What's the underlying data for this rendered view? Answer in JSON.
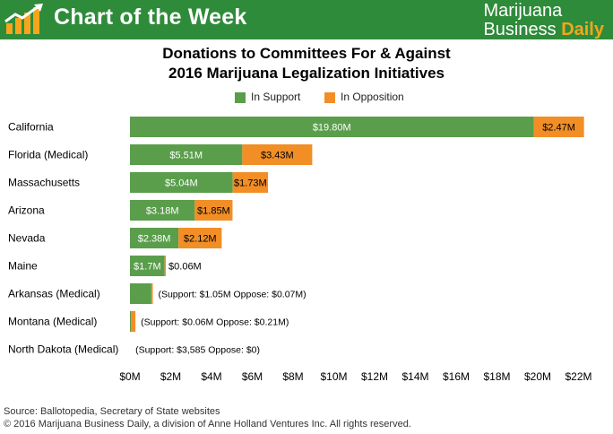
{
  "header": {
    "title": "Chart of the Week",
    "brand_line1": "Marijuana",
    "brand_line2": "Business",
    "brand_line2_accent": "Daily",
    "icon": "bar-chart-arrow-icon",
    "colors": {
      "background": "#2e8b3a",
      "accent": "#f7a51c"
    }
  },
  "chart_data": {
    "type": "bar",
    "orientation": "horizontal",
    "stacked": true,
    "title_line1": "Donations to Committees For & Against",
    "title_line2": "2016 Marijuana Legalization Initiatives",
    "categories": [
      "California",
      "Florida (Medical)",
      "Massachusetts",
      "Arizona",
      "Nevada",
      "Maine",
      "Arkansas (Medical)",
      "Montana (Medical)",
      "North Dakota (Medical)"
    ],
    "series": [
      {
        "name": "In Support",
        "color": "#5a9e4c",
        "values": [
          19.8,
          5.51,
          5.04,
          3.18,
          2.38,
          1.7,
          1.05,
          0.06,
          0.003585
        ]
      },
      {
        "name": "In Opposition",
        "color": "#f28e26",
        "values": [
          2.47,
          3.43,
          1.73,
          1.85,
          2.12,
          0.06,
          0.07,
          0.21,
          0
        ]
      }
    ],
    "data_labels": [
      {
        "support": "$19.80M",
        "opposition": "$2.47M"
      },
      {
        "support": "$5.51M",
        "opposition": "$3.43M"
      },
      {
        "support": "$5.04M",
        "opposition": "$1.73M"
      },
      {
        "support": "$3.18M",
        "opposition": "$1.85M"
      },
      {
        "support": "$2.38M",
        "opposition": "$2.12M"
      },
      {
        "support": "$1.7M",
        "opposition": "$0.06M"
      },
      {
        "note": "(Support: $1.05M      Oppose: $0.07M)"
      },
      {
        "note": "(Support: $0.06M      Oppose: $0.21M)"
      },
      {
        "note": "(Support: $3,585      Oppose: $0)"
      }
    ],
    "xlim": [
      0,
      22
    ],
    "x_ticks": [
      "$0M",
      "$2M",
      "$4M",
      "$6M",
      "$8M",
      "$10M",
      "$12M",
      "$14M",
      "$16M",
      "$18M",
      "$20M",
      "$22M"
    ],
    "grid": false,
    "legend_position": "top-center"
  },
  "footer": {
    "source": "Source: Ballotopedia, Secretary of State websites",
    "copyright": "© 2016 Marijuana Business Daily, a division of Anne Holland Ventures Inc. All rights reserved."
  }
}
